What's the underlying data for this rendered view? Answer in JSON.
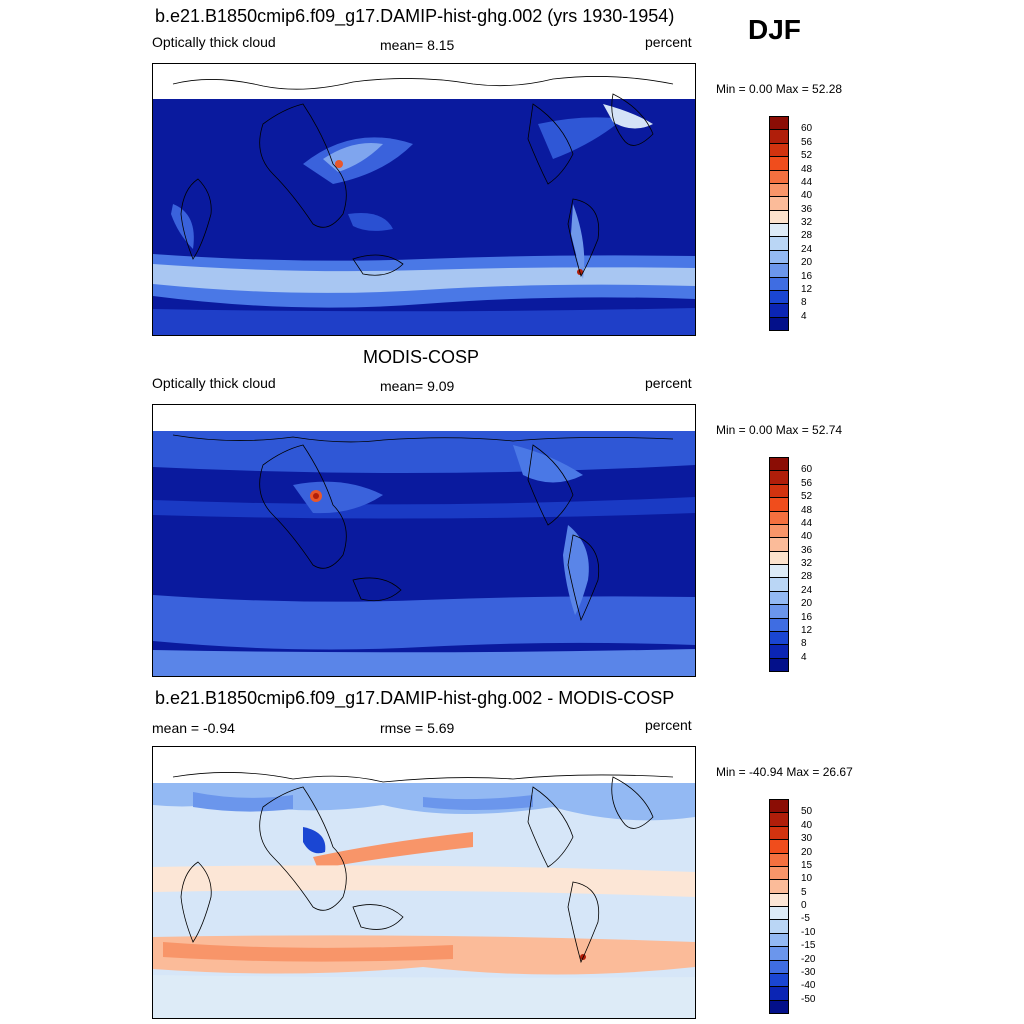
{
  "season": "DJF",
  "panels": [
    {
      "title": "b.e21.B1850cmip6.f09_g17.DAMIP-hist-ghg.002 (yrs 1930-1954)",
      "left": "Optically thick cloud",
      "center": "mean=   8.15",
      "right": "percent",
      "minmax": "Min =    0.00 Max =  52.28",
      "colorbar": {
        "labels": [
          "60",
          "56",
          "52",
          "48",
          "44",
          "40",
          "36",
          "32",
          "28",
          "24",
          "20",
          "16",
          "12",
          "8",
          "4"
        ],
        "colors": [
          "#8b0d05",
          "#b01e0a",
          "#d2330f",
          "#f04d1c",
          "#f4703f",
          "#f89569",
          "#fbbb99",
          "#fce2cc",
          "#ddebf7",
          "#bad6f5",
          "#93b9f3",
          "#6b96ec",
          "#3f6de2",
          "#1a46d3",
          "#0b25b4",
          "#03108a"
        ]
      }
    },
    {
      "title": "MODIS-COSP",
      "left": "Optically thick cloud",
      "center": "mean=   9.09",
      "right": "percent",
      "minmax": "Min =    0.00 Max =  52.74",
      "colorbar": {
        "labels": [
          "60",
          "56",
          "52",
          "48",
          "44",
          "40",
          "36",
          "32",
          "28",
          "24",
          "20",
          "16",
          "12",
          "8",
          "4"
        ],
        "colors": [
          "#8b0d05",
          "#b01e0a",
          "#d2330f",
          "#f04d1c",
          "#f4703f",
          "#f89569",
          "#fbbb99",
          "#fce2cc",
          "#ddebf7",
          "#bad6f5",
          "#93b9f3",
          "#6b96ec",
          "#3f6de2",
          "#1a46d3",
          "#0b25b4",
          "#03108a"
        ]
      }
    },
    {
      "title": "b.e21.B1850cmip6.f09_g17.DAMIP-hist-ghg.002 - MODIS-COSP",
      "left": "mean =  -0.94",
      "center": "rmse =    5.69",
      "right": "percent",
      "minmax": "Min = -40.94 Max =  26.67",
      "colorbar": {
        "labels": [
          "50",
          "40",
          "30",
          "20",
          "15",
          "10",
          "5",
          "0",
          "-5",
          "-10",
          "-15",
          "-20",
          "-30",
          "-40",
          "-50"
        ],
        "colors": [
          "#8b0d05",
          "#b01e0a",
          "#d2330f",
          "#f04d1c",
          "#f4703f",
          "#f89569",
          "#fbbb99",
          "#fce6d6",
          "#ddebf7",
          "#bad6f5",
          "#93b9f3",
          "#6b96ec",
          "#3f6de2",
          "#1a46d3",
          "#0b25b4",
          "#03108a"
        ]
      }
    }
  ]
}
